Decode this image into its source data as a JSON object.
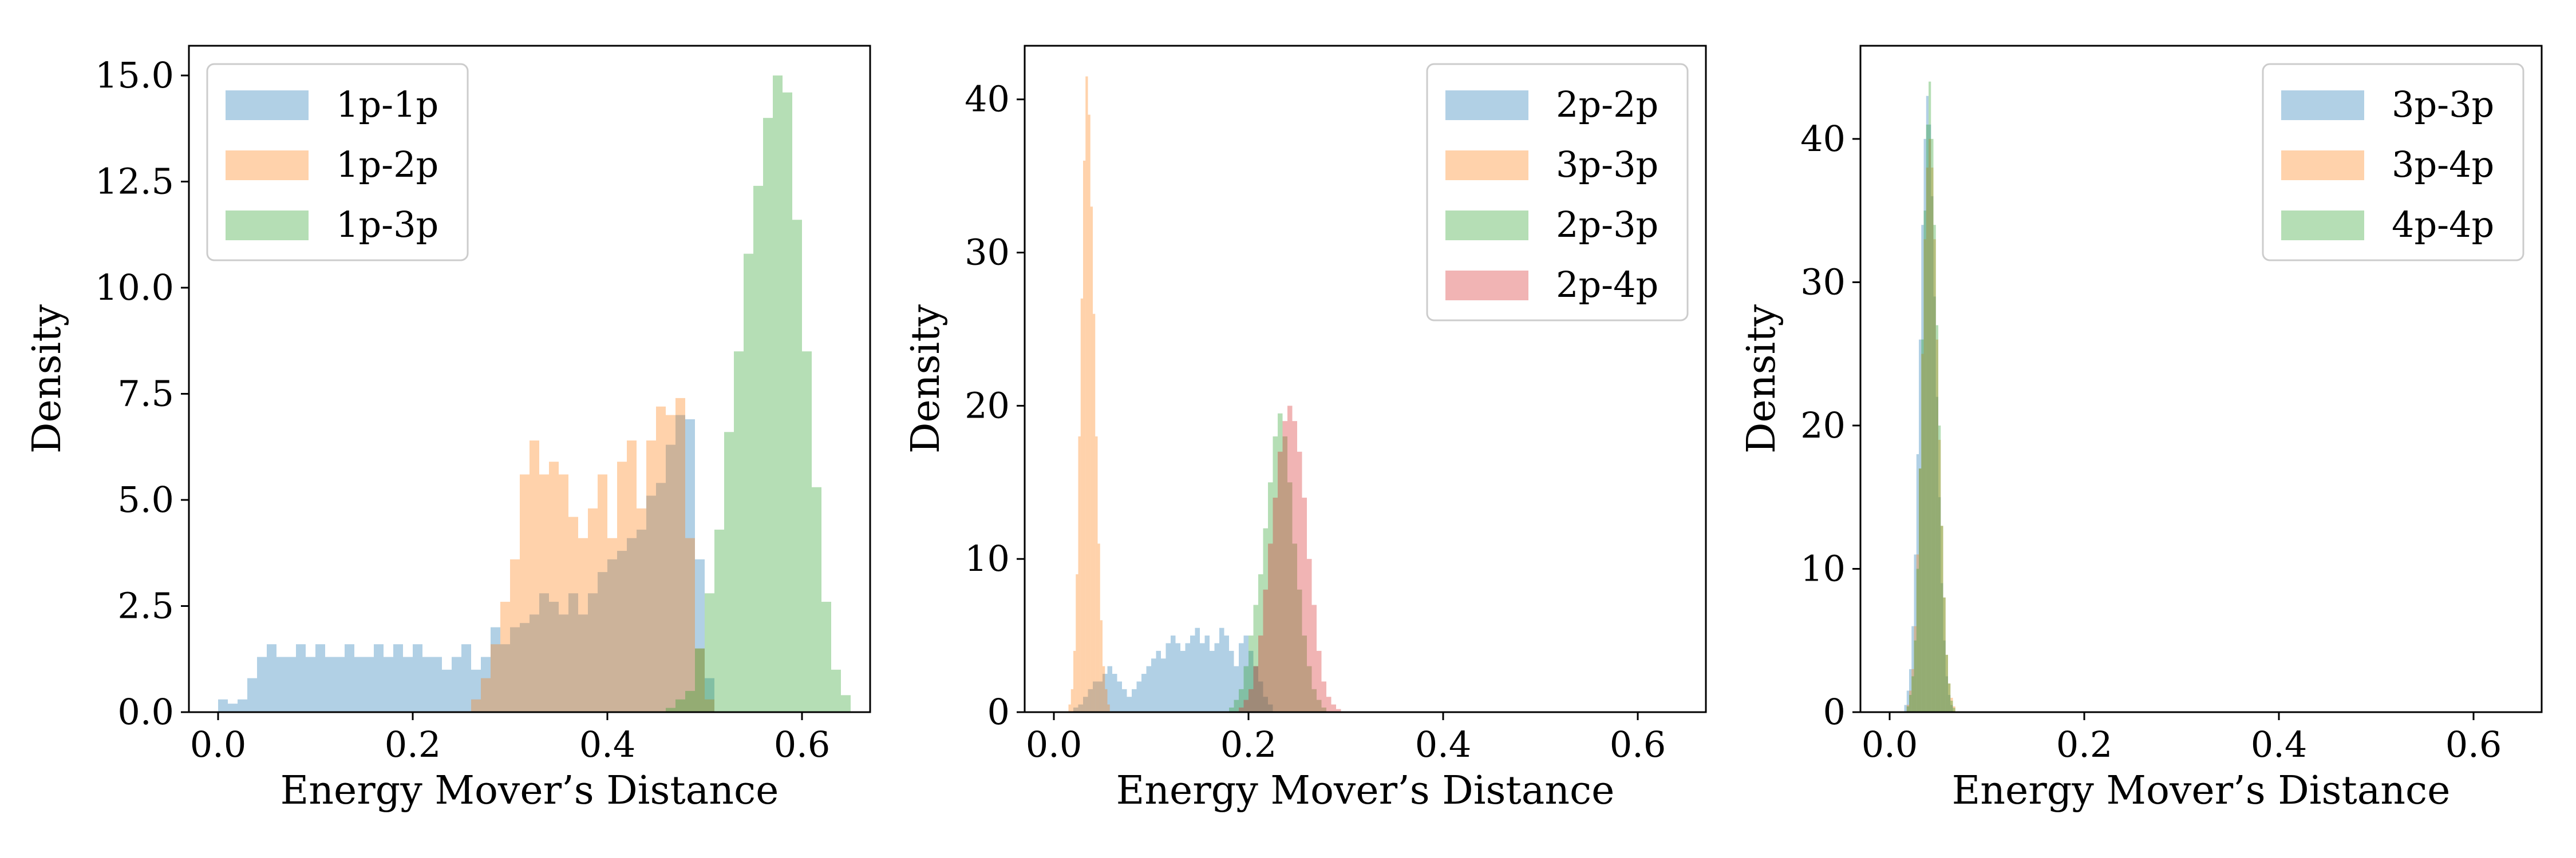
{
  "chart_data": [
    {
      "type": "histogram",
      "xlabel": "Energy Mover’s Distance",
      "ylabel": "Density",
      "xlim": [
        -0.03,
        0.67
      ],
      "ylim": [
        0,
        15.7
      ],
      "xticks": [
        0.0,
        0.2,
        0.4,
        0.6
      ],
      "xtick_labels": [
        "0.0",
        "0.2",
        "0.4",
        "0.6"
      ],
      "yticks": [
        0.0,
        2.5,
        5.0,
        7.5,
        10.0,
        12.5,
        15.0
      ],
      "ytick_labels": [
        "0.0",
        "2.5",
        "5.0",
        "7.5",
        "10.0",
        "12.5",
        "15.0"
      ],
      "grid": false,
      "legend_position": "top-left",
      "series": [
        {
          "name": "1p-1p",
          "color": "#1f77b4",
          "bin_start": 0.0,
          "bin_width": 0.01,
          "values": [
            0.3,
            0.2,
            0.3,
            0.8,
            1.3,
            1.6,
            1.3,
            1.3,
            1.6,
            1.3,
            1.6,
            1.3,
            1.3,
            1.6,
            1.3,
            1.3,
            1.6,
            1.3,
            1.6,
            1.3,
            1.6,
            1.3,
            1.3,
            1.0,
            1.3,
            1.6,
            1.0,
            1.3,
            2.0,
            1.6,
            2.0,
            2.1,
            2.3,
            2.8,
            2.6,
            2.3,
            2.8,
            2.3,
            2.8,
            3.3,
            3.6,
            3.8,
            4.1,
            4.3,
            5.1,
            5.4,
            6.3,
            7.0,
            6.9,
            3.6,
            0.8
          ]
        },
        {
          "name": "1p-2p",
          "color": "#ff7f0e",
          "bin_start": 0.26,
          "bin_width": 0.01,
          "values": [
            0.3,
            0.8,
            1.6,
            2.6,
            3.6,
            5.6,
            6.4,
            5.6,
            5.9,
            5.6,
            4.6,
            4.1,
            4.8,
            5.6,
            4.1,
            5.9,
            6.4,
            4.8,
            6.4,
            7.2,
            7.0,
            7.4,
            4.1,
            1.5,
            0.3
          ]
        },
        {
          "name": "1p-3p",
          "color": "#2ca02c",
          "bin_start": 0.46,
          "bin_width": 0.01,
          "values": [
            0.1,
            0.3,
            0.5,
            1.5,
            2.8,
            4.3,
            6.6,
            8.5,
            10.8,
            12.4,
            14.0,
            15.0,
            14.6,
            11.6,
            8.5,
            5.3,
            2.6,
            1.0,
            0.4
          ]
        }
      ]
    },
    {
      "type": "histogram",
      "xlabel": "Energy Mover’s Distance",
      "ylabel": "Density",
      "xlim": [
        -0.03,
        0.67
      ],
      "ylim": [
        0,
        43.5
      ],
      "xticks": [
        0.0,
        0.2,
        0.4,
        0.6
      ],
      "xtick_labels": [
        "0.0",
        "0.2",
        "0.4",
        "0.6"
      ],
      "yticks": [
        0,
        10,
        20,
        30,
        40
      ],
      "ytick_labels": [
        "0",
        "10",
        "20",
        "30",
        "40"
      ],
      "grid": false,
      "legend_position": "top-right",
      "series": [
        {
          "name": "2p-2p",
          "color": "#1f77b4",
          "bin_start": 0.02,
          "bin_width": 0.005,
          "values": [
            0.3,
            0.5,
            1.0,
            1.5,
            2.0,
            2.0,
            2.5,
            3.0,
            2.5,
            2.0,
            1.5,
            1.0,
            1.5,
            2.0,
            2.5,
            3.0,
            3.5,
            4.0,
            3.5,
            4.5,
            5.0,
            4.5,
            4.0,
            4.5,
            5.0,
            5.5,
            4.5,
            5.0,
            4.0,
            4.5,
            5.5,
            5.0,
            4.0,
            3.0,
            4.5,
            5.0,
            4.0,
            3.0,
            2.0,
            1.0,
            0.5
          ]
        },
        {
          "name": "3p-3p",
          "color": "#ff7f0e",
          "bin_start": 0.015,
          "bin_width": 0.0025,
          "values": [
            0.5,
            1.5,
            4,
            9,
            18,
            27,
            36,
            41.5,
            39,
            33,
            26,
            18,
            11,
            6,
            3,
            1.5,
            0.5
          ]
        },
        {
          "name": "2p-3p",
          "color": "#2ca02c",
          "bin_start": 0.18,
          "bin_width": 0.005,
          "values": [
            0.3,
            0.8,
            1.5,
            3,
            5,
            7,
            9,
            12,
            15,
            18,
            19.5,
            18,
            15,
            11,
            8,
            5,
            3,
            1.5,
            0.8,
            0.3
          ]
        },
        {
          "name": "2p-4p",
          "color": "#d62728",
          "bin_start": 0.19,
          "bin_width": 0.005,
          "values": [
            0.3,
            0.8,
            1.5,
            3,
            5,
            8,
            11,
            14,
            17,
            19,
            20,
            19,
            17,
            14,
            10,
            7,
            4,
            2,
            1,
            0.5,
            0.2
          ]
        }
      ]
    },
    {
      "type": "histogram",
      "xlabel": "Energy Mover’s Distance",
      "ylabel": "Density",
      "xlim": [
        -0.03,
        0.67
      ],
      "ylim": [
        0,
        46.5
      ],
      "xticks": [
        0.0,
        0.2,
        0.4,
        0.6
      ],
      "xtick_labels": [
        "0.0",
        "0.2",
        "0.4",
        "0.6"
      ],
      "yticks": [
        0,
        10,
        20,
        30,
        40
      ],
      "ytick_labels": [
        "0",
        "10",
        "20",
        "30",
        "40"
      ],
      "grid": false,
      "legend_position": "top-right",
      "series": [
        {
          "name": "3p-3p",
          "color": "#1f77b4",
          "bin_start": 0.015,
          "bin_width": 0.0025,
          "values": [
            0.5,
            1.5,
            3,
            6,
            11,
            18,
            26,
            34,
            40,
            43,
            41,
            36,
            29,
            22,
            15,
            9,
            5,
            2.5,
            1.2,
            0.5
          ]
        },
        {
          "name": "3p-4p",
          "color": "#ff7f0e",
          "bin_start": 0.0175,
          "bin_width": 0.0025,
          "values": [
            0.5,
            1.5,
            3,
            6,
            11,
            17,
            25,
            33,
            38,
            40,
            38,
            33,
            26,
            19,
            13,
            8,
            4,
            2,
            1,
            0.4
          ]
        },
        {
          "name": "4p-4p",
          "color": "#2ca02c",
          "bin_start": 0.0175,
          "bin_width": 0.0025,
          "values": [
            0.4,
            1.2,
            2.5,
            5,
            10,
            17,
            26,
            35,
            41,
            44,
            40,
            34,
            27,
            20,
            13,
            8,
            4,
            2,
            0.8,
            0.3
          ]
        }
      ]
    }
  ]
}
